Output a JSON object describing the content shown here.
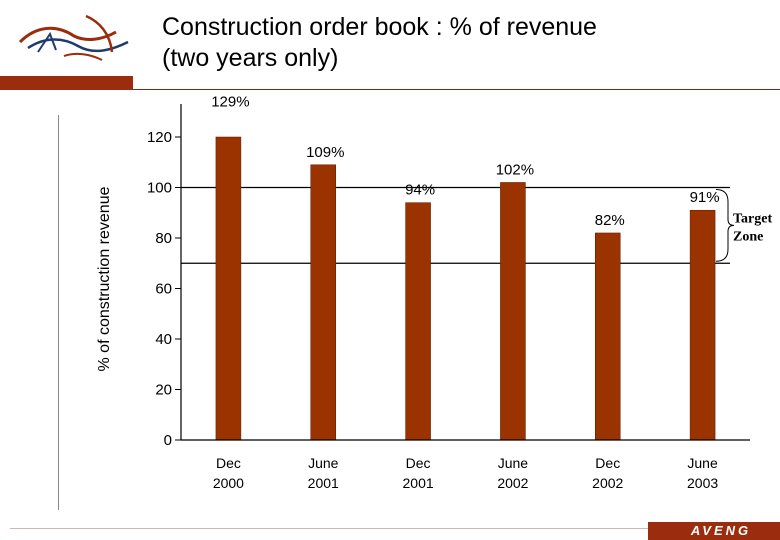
{
  "slide": {
    "title_line1": "Construction order book : % of revenue",
    "title_line2": "(two years only)",
    "brand": "AVENG",
    "logo_icon": "bird-logo-icon",
    "accent_color": "#9b2d0e"
  },
  "chart_data": {
    "type": "bar",
    "title": "",
    "ylabel": "% of construction revenue",
    "categories": [
      [
        "Dec",
        "2000"
      ],
      [
        "June",
        "2001"
      ],
      [
        "Dec",
        "2001"
      ],
      [
        "June",
        "2002"
      ],
      [
        "Dec",
        "2002"
      ],
      [
        "June",
        "2003"
      ]
    ],
    "values": [
      129,
      109,
      94,
      102,
      82,
      91
    ],
    "data_labels": [
      "129%",
      "109%",
      "94%",
      "102%",
      "82%",
      "91%"
    ],
    "ylim": [
      0,
      120
    ],
    "yticks": [
      0,
      20,
      40,
      60,
      80,
      100,
      120
    ],
    "bar_color": "#9b3300",
    "target_zone": {
      "lines": [
        "Target",
        "Zone"
      ],
      "range": [
        70,
        100
      ]
    },
    "grid": false,
    "legend": "none"
  }
}
